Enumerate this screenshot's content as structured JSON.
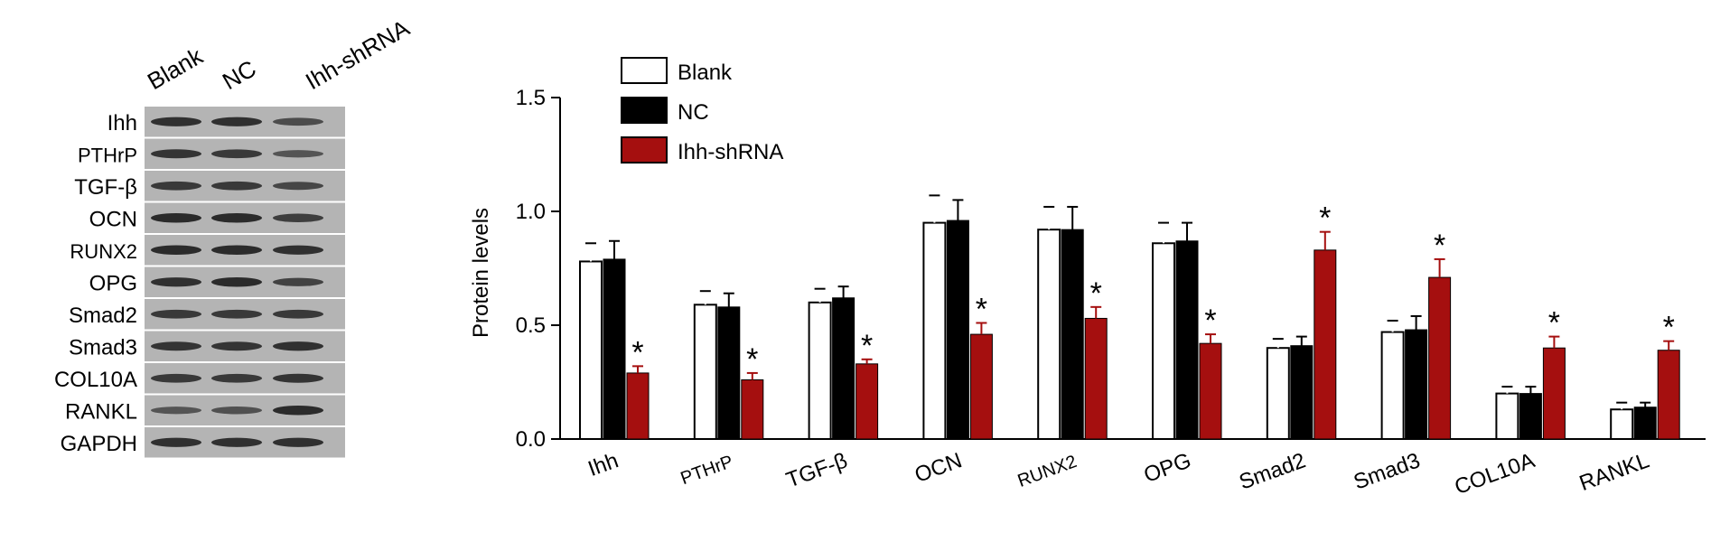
{
  "blot": {
    "lanes": [
      "Blank",
      "NC",
      "Ihh-shRNA"
    ],
    "proteins": [
      "Ihh",
      "PTHrP",
      "TGF-β",
      "OCN",
      "RUNX2",
      "OPG",
      "Smad2",
      "Smad3",
      "COL10A",
      "RANKL",
      "GAPDH"
    ],
    "band_intensity": [
      [
        0.85,
        0.85,
        0.55
      ],
      [
        0.8,
        0.75,
        0.45
      ],
      [
        0.75,
        0.75,
        0.6
      ],
      [
        0.9,
        0.9,
        0.7
      ],
      [
        0.9,
        0.9,
        0.85
      ],
      [
        0.85,
        0.9,
        0.65
      ],
      [
        0.75,
        0.75,
        0.75
      ],
      [
        0.8,
        0.8,
        0.85
      ],
      [
        0.75,
        0.75,
        0.8
      ],
      [
        0.45,
        0.5,
        0.9
      ],
      [
        0.85,
        0.85,
        0.85
      ]
    ],
    "colors": {
      "membrane": "#b4b4b4",
      "band": "#1a1a1a",
      "separator": "#ffffff"
    }
  },
  "chart_data": {
    "type": "bar",
    "title": "",
    "xlabel": "",
    "ylabel": "Protein levels",
    "ylim": [
      0,
      1.5
    ],
    "yticks": [
      "0.0",
      "0.5",
      "1.0",
      "1.5"
    ],
    "yticks_values": [
      0,
      0.5,
      1.0,
      1.5
    ],
    "categories": [
      "Ihh",
      "PTHrP",
      "TGF-β",
      "OCN",
      "RUNX2",
      "OPG",
      "Smad2",
      "Smad3",
      "COL10A",
      "RANKL"
    ],
    "series": [
      {
        "name": "Blank",
        "color": "#ffffff",
        "values": [
          0.78,
          0.59,
          0.6,
          0.95,
          0.92,
          0.86,
          0.4,
          0.47,
          0.2,
          0.13
        ],
        "errors": [
          0.08,
          0.06,
          0.06,
          0.12,
          0.1,
          0.09,
          0.04,
          0.05,
          0.03,
          0.03
        ]
      },
      {
        "name": "NC",
        "color": "#000000",
        "values": [
          0.79,
          0.58,
          0.62,
          0.96,
          0.92,
          0.87,
          0.41,
          0.48,
          0.2,
          0.14
        ],
        "errors": [
          0.08,
          0.06,
          0.05,
          0.09,
          0.1,
          0.08,
          0.04,
          0.06,
          0.03,
          0.02
        ]
      },
      {
        "name": "Ihh-shRNA",
        "color": "#a50f0f",
        "values": [
          0.29,
          0.26,
          0.33,
          0.46,
          0.53,
          0.42,
          0.83,
          0.71,
          0.4,
          0.39
        ],
        "errors": [
          0.03,
          0.03,
          0.02,
          0.05,
          0.05,
          0.04,
          0.08,
          0.08,
          0.05,
          0.04
        ]
      }
    ],
    "significance": [
      "*",
      "*",
      "*",
      "*",
      "*",
      "*",
      "*",
      "*",
      "*",
      "*"
    ],
    "legend_position": "top-left",
    "grid": false
  }
}
